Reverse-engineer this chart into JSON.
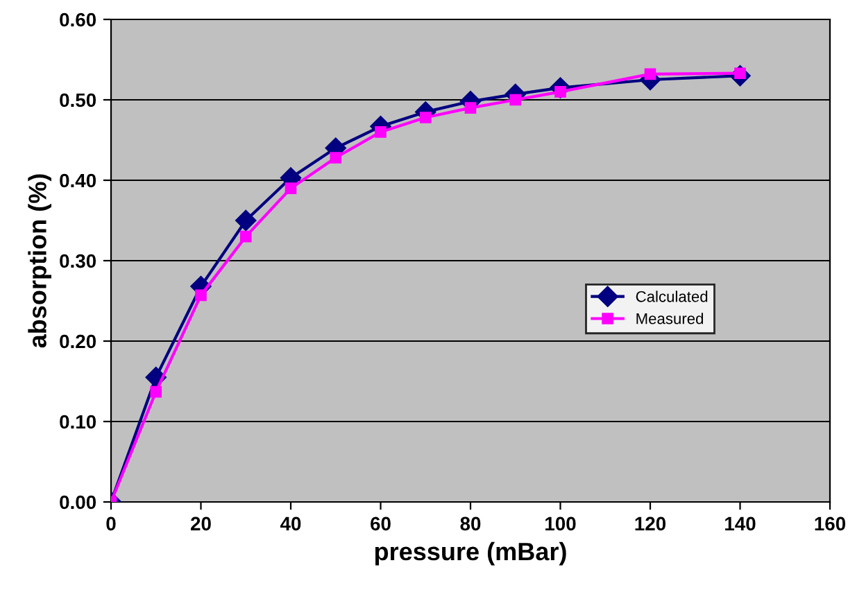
{
  "chart_data": {
    "type": "line",
    "xlabel": "pressure (mBar)",
    "ylabel": "absorption (%)",
    "x": [
      0,
      10,
      20,
      30,
      40,
      50,
      60,
      70,
      80,
      90,
      100,
      120,
      140
    ],
    "series": [
      {
        "name": "Calculated",
        "color": "#000080",
        "marker": "diamond",
        "values": [
          0.0,
          0.155,
          0.268,
          0.35,
          0.403,
          0.44,
          0.467,
          0.485,
          0.498,
          0.507,
          0.515,
          0.525,
          0.53
        ]
      },
      {
        "name": "Measured",
        "color": "#ff00ff",
        "marker": "square",
        "values": [
          0.0,
          0.137,
          0.257,
          0.33,
          0.39,
          0.428,
          0.46,
          0.478,
          0.49,
          0.5,
          0.51,
          0.532,
          0.533
        ]
      }
    ],
    "xlim": [
      0,
      160
    ],
    "xticks": [
      0,
      20,
      40,
      60,
      80,
      100,
      120,
      140,
      160
    ],
    "ylim": [
      0,
      0.6
    ],
    "yticks": [
      {
        "value": 0,
        "label": "0.00"
      },
      {
        "value": 0.1,
        "label": "0.10"
      },
      {
        "value": 0.2,
        "label": "0.20"
      },
      {
        "value": 0.3,
        "label": "0.30"
      },
      {
        "value": 0.4,
        "label": "0.40"
      },
      {
        "value": 0.5,
        "label": "0.50"
      },
      {
        "value": 0.6,
        "label": "0.60"
      }
    ],
    "grid": "y",
    "legend": "center right",
    "line_style": "solid"
  }
}
